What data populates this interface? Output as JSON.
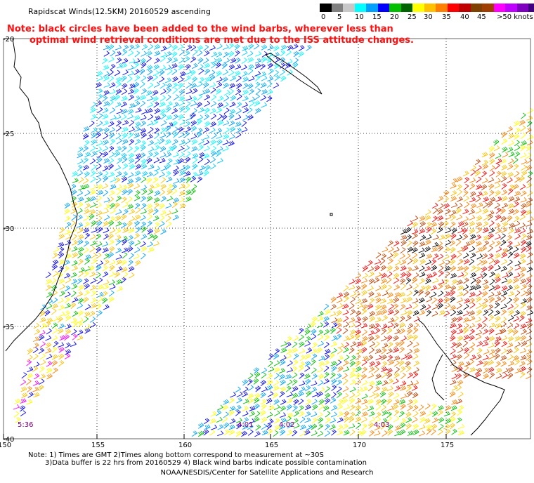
{
  "title": "Rapidscat Winds(12.5KM) 20160529 ascending",
  "note": {
    "line1": "Note: black circles have been added to the wind barbs, wherever less than",
    "line2": "optimal wind retrieval conditions are met due to the ISS attitude changes."
  },
  "legend": {
    "unit_label": ">50 knots",
    "labels": [
      "0",
      "5",
      "10",
      "15",
      "20",
      "25",
      "30",
      "35",
      "40",
      "45"
    ],
    "colors": [
      "#000000",
      "#808080",
      "#c8c8c8",
      "#00ffff",
      "#00a0ff",
      "#0000ff",
      "#00c000",
      "#006400",
      "#ffff00",
      "#ffc000",
      "#ff8000",
      "#ff0000",
      "#c00000",
      "#804000",
      "#a04000",
      "#ff00ff",
      "#c000ff",
      "#8000c0",
      "#400080",
      "#000080"
    ]
  },
  "axes": {
    "lat_labels": [
      "-20",
      "-25",
      "-30",
      "-35",
      "-40"
    ],
    "lon_labels": [
      "150",
      "155",
      "160",
      "165",
      "170",
      "175"
    ]
  },
  "time_labels": [
    "5:36",
    "4:01",
    "4:02",
    "4:03"
  ],
  "footer": {
    "line1": "Note: 1) Times are GMT 2)Times along bottom correspond to measurement at ~30S",
    "line2": "3)Data buffer is 22 hrs from 20160529 4) Black wind barbs indicate possible contamination"
  },
  "credit": "NOAA/NESDIS/Center for Satellite Applications and Research"
}
